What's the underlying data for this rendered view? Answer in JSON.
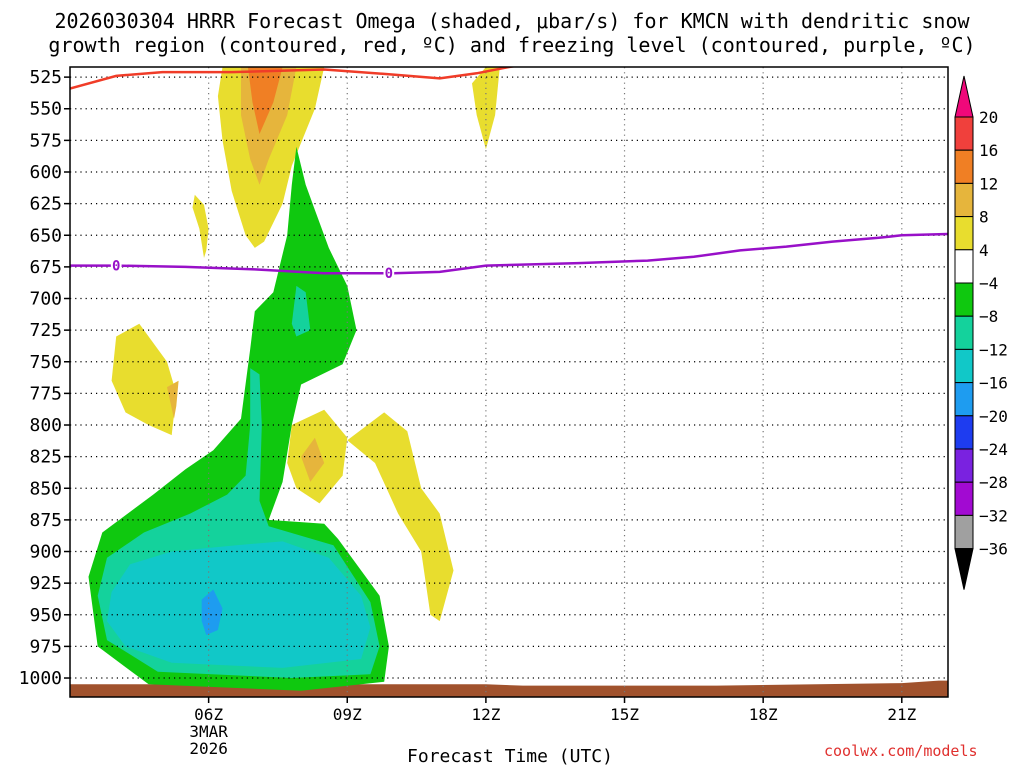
{
  "title_line1": "2026030304 HRRR Forecast Omega (shaded, μbar/s) for KMCN with dendritic snow",
  "title_line2": "growth region (contoured, red, ºC) and freezing level (contoured, purple, ºC)",
  "watermark": "coolwx.com/models",
  "chart_data": {
    "type": "heatmap",
    "title": "2026030304 HRRR Forecast Omega (shaded, μbar/s) for KMCN with dendritic snow growth region (contoured, red, ºC) and freezing level (contoured, purple, ºC)",
    "xlabel": "Forecast Time (UTC)",
    "ylabel": "",
    "x_unit": "hour UTC",
    "xlim": [
      3.0,
      22.0
    ],
    "ylim": [
      1015,
      517
    ],
    "y_scale": "pressure (top = low pressure)",
    "grid": true,
    "grid_style": "dotted",
    "x_ticks": [
      {
        "value": 6,
        "label": "06Z",
        "sublabels": [
          "3MAR",
          "2026"
        ]
      },
      {
        "value": 9,
        "label": "09Z",
        "sublabels": []
      },
      {
        "value": 12,
        "label": "12Z",
        "sublabels": []
      },
      {
        "value": 15,
        "label": "15Z",
        "sublabels": []
      },
      {
        "value": 18,
        "label": "18Z",
        "sublabels": []
      },
      {
        "value": 21,
        "label": "21Z",
        "sublabels": []
      }
    ],
    "y_ticks": [
      525,
      550,
      575,
      600,
      625,
      650,
      675,
      700,
      725,
      750,
      775,
      800,
      825,
      850,
      875,
      900,
      925,
      950,
      975,
      1000
    ],
    "colorbar": {
      "placement": "right",
      "levels": [
        20,
        16,
        12,
        8,
        4,
        -4,
        -8,
        -12,
        -16,
        -20,
        -24,
        -28,
        -32,
        -36
      ],
      "colors": [
        "#f0087a",
        "#f0403c",
        "#f07f24",
        "#e6b53c",
        "#e8dd2e",
        "#ffffff",
        "#0fc80f",
        "#14d29c",
        "#11c8c8",
        "#1e9cf0",
        "#1e3cf0",
        "#7a22e0",
        "#a20ad2",
        "#a0a0a0",
        "#000000"
      ]
    },
    "shaded_regions": [
      {
        "color": "#e8dd2e",
        "points": [
          [
            6.3,
            517
          ],
          [
            8.5,
            517
          ],
          [
            8.3,
            550
          ],
          [
            7.8,
            595
          ],
          [
            7.6,
            625
          ],
          [
            7.2,
            655
          ],
          [
            7.0,
            660
          ],
          [
            6.8,
            650
          ],
          [
            6.5,
            615
          ],
          [
            6.3,
            575
          ],
          [
            6.2,
            540
          ]
        ]
      },
      {
        "color": "#e6b53c",
        "points": [
          [
            6.7,
            517
          ],
          [
            7.9,
            517
          ],
          [
            7.7,
            555
          ],
          [
            7.3,
            590
          ],
          [
            7.1,
            610
          ],
          [
            6.9,
            590
          ],
          [
            6.7,
            555
          ]
        ]
      },
      {
        "color": "#f07f24",
        "points": [
          [
            6.85,
            517
          ],
          [
            7.6,
            517
          ],
          [
            7.4,
            545
          ],
          [
            7.1,
            570
          ],
          [
            6.95,
            545
          ]
        ]
      },
      {
        "color": "#e8dd2e",
        "points": [
          [
            12.0,
            517
          ],
          [
            12.3,
            517
          ],
          [
            12.2,
            555
          ],
          [
            12.0,
            582
          ],
          [
            11.8,
            555
          ],
          [
            11.7,
            530
          ]
        ]
      },
      {
        "color": "#e8dd2e",
        "points": [
          [
            5.7,
            618
          ],
          [
            5.9,
            626
          ],
          [
            6.0,
            645
          ],
          [
            5.95,
            662
          ],
          [
            5.9,
            668
          ],
          [
            5.8,
            645
          ],
          [
            5.65,
            628
          ]
        ]
      },
      {
        "color": "#e8dd2e",
        "points": [
          [
            4.0,
            730
          ],
          [
            4.5,
            720
          ],
          [
            5.1,
            750
          ],
          [
            5.3,
            775
          ],
          [
            5.2,
            808
          ],
          [
            4.7,
            800
          ],
          [
            4.2,
            790
          ],
          [
            3.9,
            765
          ]
        ]
      },
      {
        "color": "#e6b53c",
        "points": [
          [
            5.1,
            770
          ],
          [
            5.35,
            765
          ],
          [
            5.3,
            785
          ],
          [
            5.25,
            795
          ]
        ]
      },
      {
        "color": "#e8dd2e",
        "points": [
          [
            7.8,
            800
          ],
          [
            8.5,
            788
          ],
          [
            9.0,
            810
          ],
          [
            8.9,
            840
          ],
          [
            8.4,
            862
          ],
          [
            7.9,
            850
          ],
          [
            7.7,
            830
          ]
        ]
      },
      {
        "color": "#e6b53c",
        "points": [
          [
            8.0,
            825
          ],
          [
            8.3,
            810
          ],
          [
            8.5,
            830
          ],
          [
            8.2,
            845
          ]
        ]
      },
      {
        "color": "#e8dd2e",
        "points": [
          [
            9.0,
            812
          ],
          [
            9.8,
            790
          ],
          [
            10.3,
            805
          ],
          [
            10.6,
            850
          ],
          [
            11.0,
            870
          ],
          [
            11.3,
            915
          ],
          [
            11.0,
            955
          ],
          [
            10.8,
            950
          ],
          [
            10.6,
            900
          ],
          [
            10.1,
            870
          ],
          [
            9.6,
            830
          ]
        ]
      },
      {
        "color": "#0fc80f",
        "points": [
          [
            7.9,
            580
          ],
          [
            8.1,
            610
          ],
          [
            8.3,
            630
          ],
          [
            8.6,
            660
          ],
          [
            9.0,
            690
          ],
          [
            9.2,
            725
          ],
          [
            8.9,
            752
          ],
          [
            8.0,
            768
          ],
          [
            7.8,
            800
          ],
          [
            7.6,
            845
          ],
          [
            7.3,
            875
          ],
          [
            8.5,
            878
          ],
          [
            8.8,
            890
          ],
          [
            9.7,
            935
          ],
          [
            9.9,
            975
          ],
          [
            9.8,
            1003
          ],
          [
            8.0,
            1010
          ],
          [
            4.7,
            1005
          ],
          [
            3.6,
            975
          ],
          [
            3.4,
            920
          ],
          [
            3.7,
            885
          ],
          [
            4.8,
            855
          ],
          [
            5.5,
            835
          ],
          [
            6.1,
            820
          ],
          [
            6.7,
            795
          ],
          [
            6.9,
            740
          ],
          [
            7.0,
            710
          ],
          [
            7.4,
            695
          ],
          [
            7.7,
            650
          ],
          [
            7.8,
            610
          ]
        ]
      },
      {
        "color": "#14d29c",
        "points": [
          [
            7.9,
            690
          ],
          [
            8.1,
            695
          ],
          [
            8.2,
            725
          ],
          [
            7.9,
            730
          ],
          [
            7.8,
            720
          ]
        ]
      },
      {
        "color": "#14d29c",
        "points": [
          [
            6.9,
            755
          ],
          [
            7.1,
            760
          ],
          [
            7.15,
            800
          ],
          [
            7.1,
            860
          ],
          [
            7.3,
            880
          ],
          [
            8.7,
            895
          ],
          [
            9.5,
            940
          ],
          [
            9.7,
            975
          ],
          [
            9.5,
            997
          ],
          [
            7.8,
            1000
          ],
          [
            4.9,
            995
          ],
          [
            3.8,
            970
          ],
          [
            3.6,
            935
          ],
          [
            3.8,
            905
          ],
          [
            4.6,
            885
          ],
          [
            5.6,
            870
          ],
          [
            6.4,
            855
          ],
          [
            6.8,
            840
          ],
          [
            6.9,
            800
          ]
        ]
      },
      {
        "color": "#11c8c8",
        "points": [
          [
            3.9,
            932
          ],
          [
            4.3,
            910
          ],
          [
            5.2,
            900
          ],
          [
            6.6,
            895
          ],
          [
            7.6,
            892
          ],
          [
            8.6,
            905
          ],
          [
            9.3,
            935
          ],
          [
            9.5,
            960
          ],
          [
            9.3,
            985
          ],
          [
            7.6,
            992
          ],
          [
            5.2,
            988
          ],
          [
            4.2,
            975
          ],
          [
            3.8,
            955
          ]
        ]
      },
      {
        "color": "#1e9cf0",
        "points": [
          [
            5.85,
            938
          ],
          [
            6.1,
            930
          ],
          [
            6.3,
            945
          ],
          [
            6.2,
            962
          ],
          [
            5.95,
            966
          ],
          [
            5.85,
            955
          ]
        ]
      }
    ],
    "dendritic_growth_contour": {
      "color": "#f03c28",
      "points": [
        [
          3.0,
          534
        ],
        [
          4.0,
          524
        ],
        [
          5.0,
          521
        ],
        [
          6.5,
          521
        ],
        [
          8.5,
          519
        ],
        [
          10.0,
          523
        ],
        [
          11.0,
          526
        ],
        [
          11.8,
          522
        ],
        [
          12.5,
          517
        ],
        [
          13.2,
          513
        ]
      ]
    },
    "freezing_level_contour": {
      "color": "#9810c8",
      "label": "0",
      "label_positions": [
        [
          4.0,
          674
        ],
        [
          9.9,
          680
        ]
      ],
      "points": [
        [
          3.0,
          674
        ],
        [
          4.0,
          674
        ],
        [
          5.5,
          675
        ],
        [
          7.0,
          677
        ],
        [
          8.5,
          680
        ],
        [
          10.0,
          680
        ],
        [
          11.0,
          679
        ],
        [
          12.0,
          674
        ],
        [
          14.0,
          672
        ],
        [
          15.5,
          670
        ],
        [
          16.5,
          667
        ],
        [
          17.5,
          662
        ],
        [
          18.5,
          659
        ],
        [
          19.5,
          655
        ],
        [
          20.5,
          652
        ],
        [
          21.0,
          650
        ],
        [
          22.0,
          649
        ]
      ]
    },
    "terrain_surface": {
      "color": "#a0522d",
      "points": [
        [
          3.0,
          1005
        ],
        [
          8.0,
          1005
        ],
        [
          12.0,
          1005
        ],
        [
          12.8,
          1006
        ],
        [
          17.0,
          1006
        ],
        [
          21.0,
          1004
        ],
        [
          21.8,
          1002
        ],
        [
          22.0,
          1002
        ]
      ]
    }
  }
}
